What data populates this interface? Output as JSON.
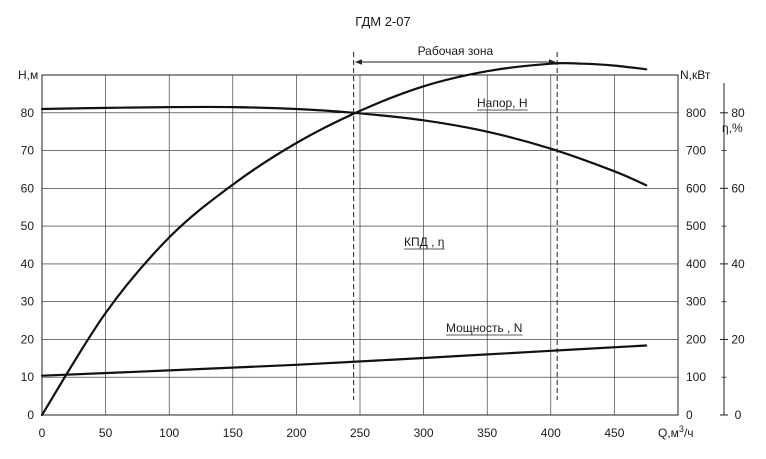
{
  "chart_data": {
    "type": "line",
    "title": "ГДМ 2-07",
    "xlabel": "Q,м³/ч",
    "xlabel_base": "Q,м",
    "xlabel_sup": "3",
    "xlabel_tail": "/ч",
    "xlim": [
      0,
      500
    ],
    "x_ticks": [
      0,
      50,
      100,
      150,
      200,
      250,
      300,
      350,
      400,
      450
    ],
    "y_left": {
      "label": "H,м",
      "lim": [
        0,
        90
      ],
      "ticks": [
        0,
        10,
        20,
        30,
        40,
        50,
        60,
        70,
        80
      ]
    },
    "y_right_power": {
      "label": "N,кВт",
      "lim": [
        0,
        900
      ],
      "ticks": [
        0,
        100,
        200,
        300,
        400,
        500,
        600,
        700,
        800
      ]
    },
    "y_right_eff": {
      "label": "η,%",
      "lim": [
        0,
        90
      ],
      "ticks": [
        0,
        20,
        40,
        60,
        80
      ]
    },
    "grid": true,
    "working_zone": {
      "label": "Рабочая зона",
      "from": 245,
      "to": 405
    },
    "series": [
      {
        "name": "Напор, Н",
        "axis": "left",
        "x": [
          0,
          50,
          100,
          150,
          200,
          245,
          300,
          350,
          400,
          450,
          475
        ],
        "values": [
          81,
          81.3,
          81.5,
          81.5,
          81.0,
          80.0,
          78.0,
          75.0,
          70.5,
          64.5,
          60.8
        ]
      },
      {
        "name": "КПД , η",
        "axis": "right_eff",
        "x": [
          0,
          50,
          100,
          150,
          200,
          250,
          300,
          350,
          400,
          425,
          450,
          475
        ],
        "values": [
          0,
          27,
          47,
          61,
          72,
          80.5,
          87,
          91,
          93,
          93,
          92.5,
          91.5
        ]
      },
      {
        "name": "Мощность , N",
        "axis": "right_power",
        "x": [
          0,
          100,
          200,
          300,
          400,
          475
        ],
        "values": [
          104,
          118,
          133,
          151,
          170,
          184
        ]
      }
    ]
  }
}
